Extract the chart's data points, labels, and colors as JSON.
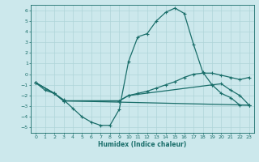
{
  "xlabel": "Humidex (Indice chaleur)",
  "bg_color": "#cce8ec",
  "grid_color": "#afd4d8",
  "line_color": "#1a6e6a",
  "xlim": [
    -0.5,
    23.5
  ],
  "ylim": [
    -5.5,
    6.5
  ],
  "xticks": [
    0,
    1,
    2,
    3,
    4,
    5,
    6,
    7,
    8,
    9,
    10,
    11,
    12,
    13,
    14,
    15,
    16,
    17,
    18,
    19,
    20,
    21,
    22,
    23
  ],
  "yticks": [
    -5,
    -4,
    -3,
    -2,
    -1,
    0,
    1,
    2,
    3,
    4,
    5,
    6
  ],
  "line1_x": [
    0,
    1,
    2,
    3,
    4,
    5,
    6,
    7,
    8,
    9,
    10,
    11,
    12,
    13,
    14,
    15,
    16,
    17,
    18,
    19,
    20,
    21,
    22,
    23
  ],
  "line1_y": [
    -0.8,
    -1.5,
    -1.8,
    -2.4,
    -3.2,
    -4.0,
    -4.5,
    -4.8,
    -4.8,
    -3.3,
    1.2,
    3.5,
    3.8,
    5.0,
    5.8,
    6.2,
    5.7,
    2.8,
    0.2,
    -1.0,
    -1.8,
    -2.2,
    -2.9,
    -2.9
  ],
  "line2_x": [
    0,
    2,
    3,
    23
  ],
  "line2_y": [
    -0.8,
    -1.8,
    -2.5,
    -2.9
  ],
  "line3_x": [
    0,
    2,
    3,
    9,
    10,
    11,
    12,
    13,
    14,
    15,
    16,
    17,
    18,
    19,
    20,
    21,
    22,
    23
  ],
  "line3_y": [
    -0.8,
    -1.8,
    -2.5,
    -2.5,
    -2.0,
    -1.8,
    -1.6,
    -1.3,
    -1.0,
    -0.7,
    -0.3,
    0.0,
    0.1,
    0.1,
    -0.1,
    -0.3,
    -0.5,
    -0.3
  ],
  "line4_x": [
    0,
    2,
    3,
    9,
    10,
    19,
    20,
    21,
    22,
    23
  ],
  "line4_y": [
    -0.8,
    -1.8,
    -2.5,
    -2.5,
    -2.0,
    -1.0,
    -0.9,
    -1.5,
    -2.0,
    -2.9
  ]
}
